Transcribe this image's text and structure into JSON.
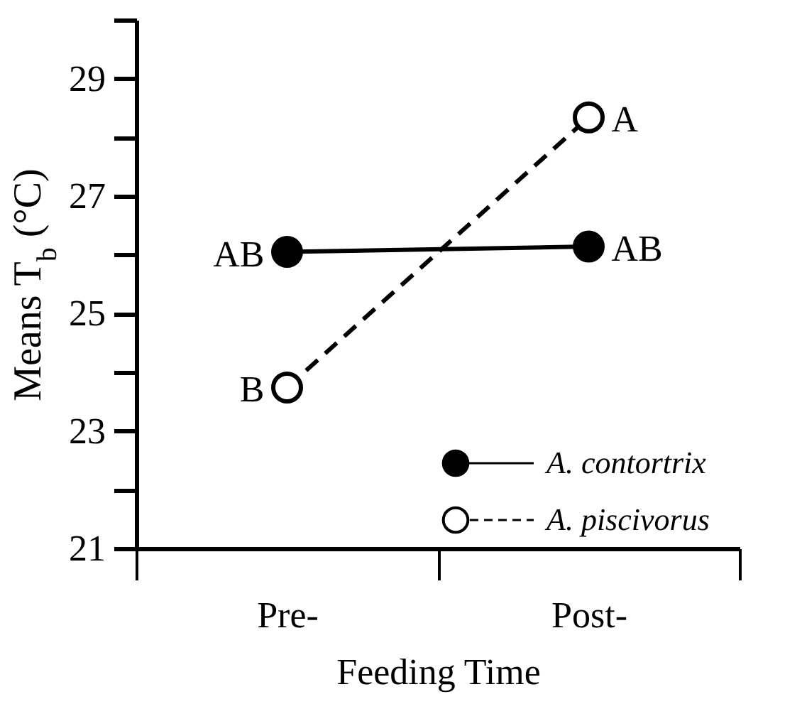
{
  "chart_data": {
    "type": "line",
    "xlabel": "Feeding Time",
    "ylabel": "Means T$_{b}$ (°C)",
    "categories": [
      "Pre-",
      "Post-"
    ],
    "series": [
      {
        "name": "A. contortrix",
        "color": "#000000",
        "values": [
          26.05,
          26.14
        ],
        "line_style": "solid"
      },
      {
        "name": "A. piscivorus",
        "color": "#000000",
        "values": [
          23.74,
          28.34
        ],
        "line_style": "dashed"
      }
    ],
    "ylim": [
      21,
      30
    ],
    "yticks": [
      21,
      {
        "value": 22,
        "label": null
      },
      23,
      {
        "value": 24,
        "label": null
      },
      25,
      {
        "value": 26,
        "label": null
      },
      27,
      {
        "value": 28,
        "label": null
      },
      29,
      {
        "value": 30,
        "label": null
      }
    ],
    "annotations": [
      {
        "text": "AB",
        "x": "Pre-",
        "y": 26.05
      },
      {
        "text": "AB",
        "x": "Post-",
        "y": 26.14
      },
      {
        "text": "B",
        "x": "Pre-",
        "y": 23.74
      },
      {
        "text": "A",
        "x": "Post-",
        "y": 28.34
      }
    ],
    "marker": "circle",
    "legend": "bottom right"
  }
}
